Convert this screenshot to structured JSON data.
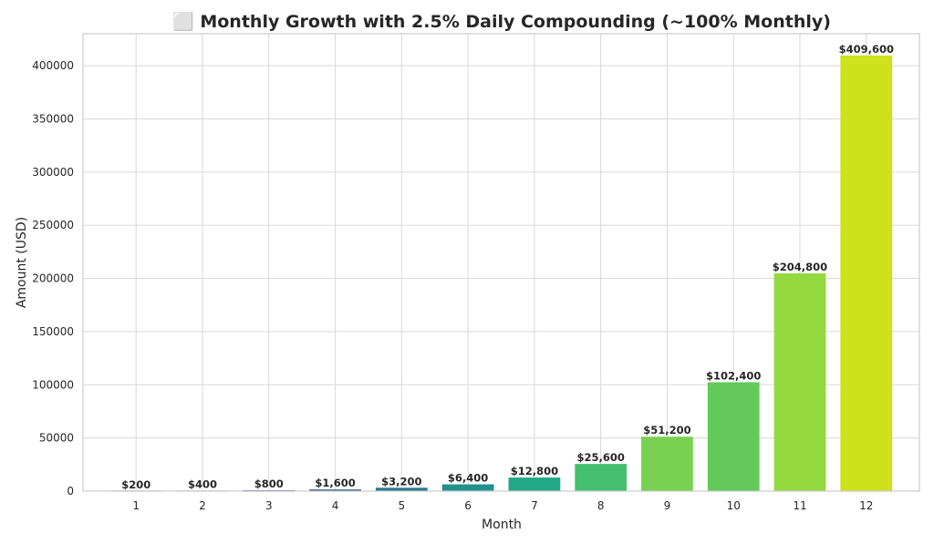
{
  "chart_data": {
    "type": "bar",
    "title": "⬜ Monthly Growth with 2.5% Daily Compounding (~100% Monthly)",
    "xlabel": "Month",
    "ylabel": "Amount (USD)",
    "categories": [
      "1",
      "2",
      "3",
      "4",
      "5",
      "6",
      "7",
      "8",
      "9",
      "10",
      "11",
      "12"
    ],
    "values": [
      200,
      400,
      800,
      1600,
      3200,
      6400,
      12800,
      25600,
      51200,
      102400,
      204800,
      409600
    ],
    "data_labels": [
      "$200",
      "$400",
      "$800",
      "$1,600",
      "$3,200",
      "$6,400",
      "$12,800",
      "$25,600",
      "$51,200",
      "$102,400",
      "$204,800",
      "$409,600"
    ],
    "colors": [
      "#440154",
      "#482475",
      "#414487",
      "#355f8d",
      "#2a788e",
      "#21918c",
      "#22a884",
      "#44bf70",
      "#7ad151",
      "#63c95a",
      "#95d840",
      "#cde11d"
    ],
    "ylim": [
      0,
      430080
    ],
    "yticks": [
      0,
      50000,
      100000,
      150000,
      200000,
      250000,
      300000,
      350000,
      400000
    ],
    "ytick_labels": [
      "0",
      "50000",
      "100000",
      "150000",
      "200000",
      "250000",
      "300000",
      "350000",
      "400000"
    ],
    "grid": true,
    "legend": "none"
  }
}
